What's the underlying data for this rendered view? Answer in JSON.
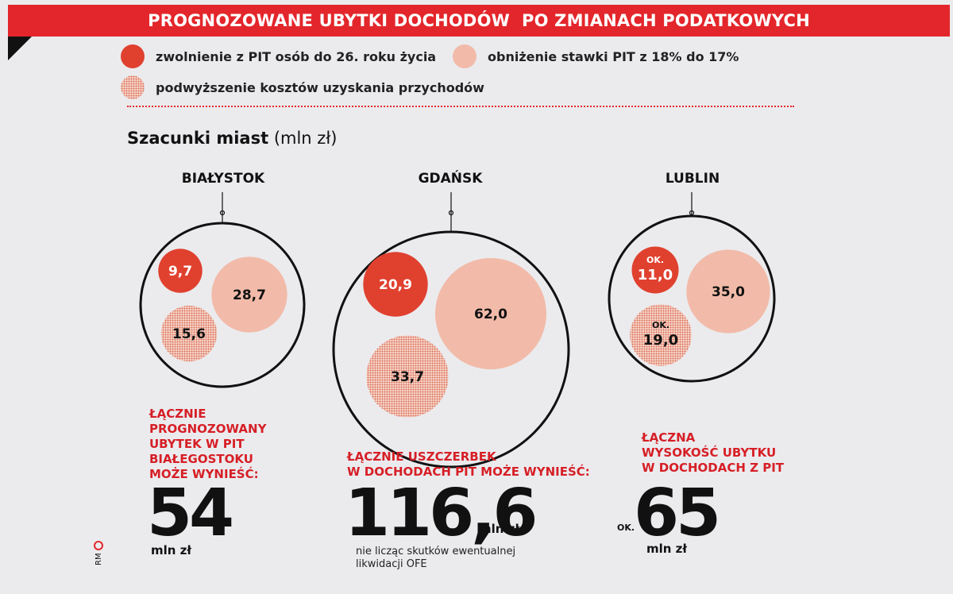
{
  "header": {
    "title": "PROGNOZOWANE UBYTKI DOCHODÓW  PO ZMIANACH PODATKOWYCH"
  },
  "legend": [
    {
      "label": "zwolnienie z PIT osób do 26. roku życia",
      "color": "#e0412f",
      "pattern": "solid"
    },
    {
      "label": "obniżenie stawki PIT z 18% do 17%",
      "color": "#f2bba9",
      "pattern": "solid"
    },
    {
      "label": "podwyższenie kosztów uzyskania przychodów",
      "color": "#d9694f",
      "pattern": "dotted"
    }
  ],
  "subtitle": {
    "bold": "Szacunki miast",
    "unit": "(mln zł)"
  },
  "colors": {
    "accent": "#e3262b",
    "young": "#e0412f",
    "rate": "#f2bba9",
    "costs_dot": "#d9694f",
    "costs_bg": "#f6d7cd"
  },
  "chart_data": [
    {
      "type": "bubble",
      "title": "BIAŁYSTOK",
      "categories": [
        "zwolnienie z PIT osób do 26. roku życia",
        "obniżenie stawki PIT z 18% do 17%",
        "podwyższenie kosztów uzyskania przychodów"
      ],
      "values": [
        9.7,
        28.7,
        15.6
      ],
      "labels": [
        "9,7",
        "28,7",
        "15,6"
      ],
      "approx": [
        false,
        false,
        false
      ],
      "total": 54,
      "total_label": "54",
      "total_unit": "mln zł",
      "total_prefix": "",
      "caption": [
        "ŁĄCZNIE",
        "PROGNOZOWANY",
        "UBYTEK W PIT",
        "BIAŁEGOSTOKU",
        "MOŻE WYNIEŚĆ:"
      ],
      "note": []
    },
    {
      "type": "bubble",
      "title": "GDAŃSK",
      "categories": [
        "zwolnienie z PIT osób do 26. roku życia",
        "obniżenie stawki PIT z 18% do 17%",
        "podwyższenie kosztów uzyskania przychodów"
      ],
      "values": [
        20.9,
        62.0,
        33.7
      ],
      "labels": [
        "20,9",
        "62,0",
        "33,7"
      ],
      "approx": [
        false,
        false,
        false
      ],
      "total": 116.6,
      "total_label": "116,6",
      "total_unit": "mln zł",
      "total_prefix": "",
      "caption": [
        "ŁĄCZNIE USZCZERBEK",
        "W DOCHODACH PIT MOŻE WYNIEŚĆ:"
      ],
      "note": [
        "nie licząc skutków ewentualnej",
        "likwidacji OFE"
      ]
    },
    {
      "type": "bubble",
      "title": "LUBLIN",
      "categories": [
        "zwolnienie z PIT osób do 26. roku życia",
        "obniżenie stawki PIT z 18% do 17%",
        "podwyższenie kosztów uzyskania przychodów"
      ],
      "values": [
        11.0,
        35.0,
        19.0
      ],
      "labels": [
        "11,0",
        "35,0",
        "19,0"
      ],
      "approx": [
        true,
        false,
        true
      ],
      "approx_label": "OK.",
      "total": 65,
      "total_label": "65",
      "total_unit": "mln zł",
      "total_prefix": "OK.",
      "caption": [
        "ŁĄCZNA",
        "WYSOKOŚĆ UBYTKU",
        "W DOCHODACH Z PIT"
      ],
      "note": []
    }
  ],
  "credit": "RM"
}
